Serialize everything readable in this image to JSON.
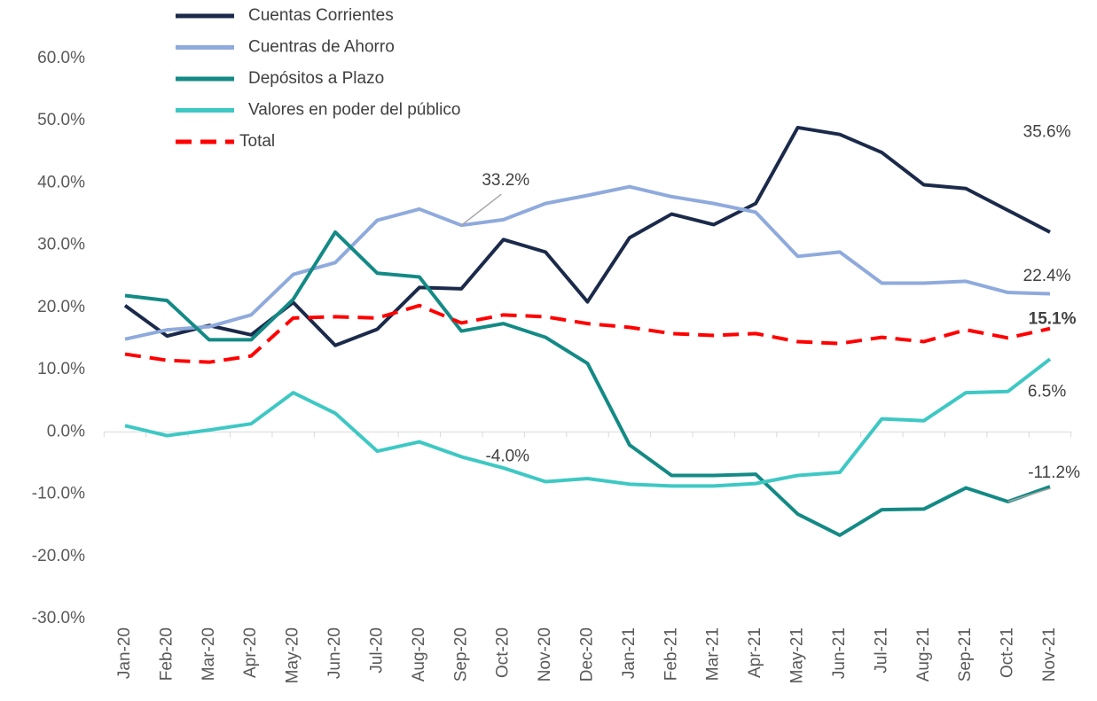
{
  "chart_data": {
    "type": "line",
    "categories": [
      "Jan-20",
      "Feb-20",
      "Mar-20",
      "Apr-20",
      "May-20",
      "Jun-20",
      "Jul-20",
      "Aug-20",
      "Sep-20",
      "Oct-20",
      "Nov-20",
      "Dec-20",
      "Jan-21",
      "Feb-21",
      "Mar-21",
      "Apr-21",
      "May-21",
      "Jun-21",
      "Jul-21",
      "Aug-21",
      "Sep-21",
      "Oct-21",
      "Nov-21"
    ],
    "ylim": [
      -30,
      60
    ],
    "yticks": [
      {
        "value": -30,
        "label": "-30.0%"
      },
      {
        "value": -20,
        "label": "-20.0%"
      },
      {
        "value": -10,
        "label": "-10.0%"
      },
      {
        "value": 0,
        "label": "0.0%"
      },
      {
        "value": 10,
        "label": "10.0%"
      },
      {
        "value": 20,
        "label": "20.0%"
      },
      {
        "value": 30,
        "label": "30.0%"
      },
      {
        "value": 40,
        "label": "40.0%"
      },
      {
        "value": 50,
        "label": "50.0%"
      },
      {
        "value": 60,
        "label": "60.0%"
      }
    ],
    "grid": false,
    "legend": "top-left",
    "series": [
      {
        "name": "Cuentas Corrientes",
        "color": "#1b2a4a",
        "dash": false,
        "values": [
          20.3,
          15.4,
          17.1,
          15.6,
          20.8,
          13.9,
          16.5,
          23.2,
          23.0,
          30.9,
          28.9,
          20.9,
          31.2,
          35.0,
          33.3,
          36.7,
          48.9,
          47.8,
          44.9,
          39.7,
          39.1,
          35.6,
          32.1
        ],
        "value_labels": [
          null,
          null,
          null,
          null,
          null,
          null,
          null,
          null,
          null,
          null,
          null,
          null,
          null,
          null,
          null,
          null,
          null,
          null,
          null,
          null,
          null,
          "35.6%",
          null
        ]
      },
      {
        "name": "Cuentras de Ahorro",
        "color": "#8faadc",
        "dash": false,
        "values": [
          14.9,
          16.4,
          16.9,
          18.8,
          25.3,
          27.2,
          34.0,
          35.8,
          33.2,
          34.1,
          36.7,
          38.0,
          39.4,
          37.8,
          36.7,
          35.3,
          28.2,
          28.9,
          23.9,
          23.9,
          24.2,
          22.4,
          22.2
        ],
        "value_labels": [
          null,
          null,
          null,
          null,
          null,
          null,
          null,
          null,
          "33.2%",
          null,
          null,
          null,
          null,
          null,
          null,
          null,
          null,
          null,
          null,
          null,
          null,
          "22.4%",
          null
        ]
      },
      {
        "name": "Depósitos a Plazo",
        "color": "#138a85",
        "dash": false,
        "values": [
          21.9,
          21.1,
          14.8,
          14.8,
          21.3,
          32.1,
          25.5,
          24.9,
          16.2,
          17.4,
          15.2,
          11.0,
          -2.1,
          -7.0,
          -7.0,
          -6.8,
          -13.2,
          -16.6,
          -12.5,
          -12.4,
          -9.0,
          -11.2,
          -8.8
        ],
        "value_labels": [
          null,
          null,
          null,
          null,
          null,
          null,
          null,
          null,
          null,
          null,
          null,
          null,
          null,
          null,
          null,
          null,
          null,
          null,
          null,
          null,
          null,
          "-11.2%",
          null
        ]
      },
      {
        "name": "Valores en poder del público",
        "color": "#3ec8c4",
        "dash": false,
        "values": [
          1.0,
          -0.6,
          0.3,
          1.3,
          6.3,
          3.0,
          -3.1,
          -1.6,
          -4.0,
          -5.8,
          -8.0,
          -7.5,
          -8.4,
          -8.7,
          -8.7,
          -8.3,
          -7.0,
          -6.5,
          2.1,
          1.8,
          6.3,
          6.5,
          11.7
        ],
        "value_labels": [
          null,
          null,
          null,
          null,
          null,
          null,
          null,
          null,
          "-4.0%",
          null,
          null,
          null,
          null,
          null,
          null,
          null,
          null,
          null,
          null,
          null,
          null,
          "6.5%",
          null
        ]
      },
      {
        "name": "Total",
        "color": "#ff0000",
        "dash": true,
        "values": [
          12.5,
          11.5,
          11.2,
          12.2,
          18.3,
          18.5,
          18.3,
          20.3,
          17.5,
          18.8,
          18.5,
          17.4,
          16.8,
          15.8,
          15.5,
          15.8,
          14.5,
          14.2,
          15.2,
          14.5,
          16.4,
          15.1,
          16.6
        ],
        "value_labels": [
          null,
          null,
          null,
          null,
          null,
          null,
          null,
          null,
          null,
          null,
          null,
          null,
          null,
          null,
          null,
          null,
          null,
          null,
          null,
          null,
          null,
          "15.1%",
          null
        ]
      }
    ]
  }
}
